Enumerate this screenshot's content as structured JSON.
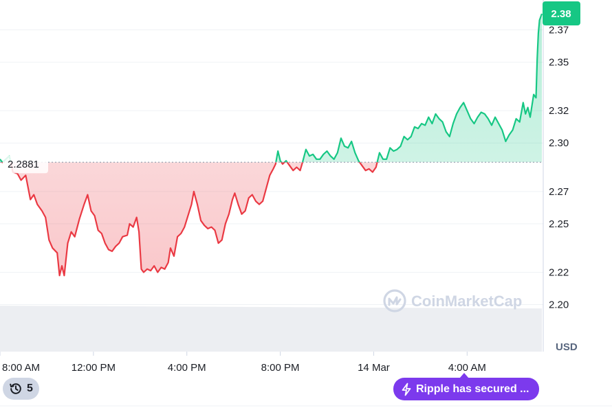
{
  "chart_data": {
    "type": "line",
    "y_ticks": [
      "2.20",
      "2.22",
      "2.25",
      "2.27",
      "2.30",
      "2.32",
      "2.35",
      "2.37"
    ],
    "y_tick_values": [
      2.2,
      2.22,
      2.25,
      2.27,
      2.3,
      2.32,
      2.35,
      2.37
    ],
    "ylim": [
      2.193,
      2.38
    ],
    "x_ticks": [
      "8:00 AM",
      "12:00 PM",
      "4:00 PM",
      "8:00 PM",
      "14 Mar",
      "4:00 AM"
    ],
    "x_tick_hours": [
      8,
      12,
      16,
      20,
      24,
      28
    ],
    "xlim_hours": [
      8,
      31.2
    ],
    "unit": "USD",
    "reference_price": 2.2881,
    "reference_label": "2.2881",
    "current_price": 2.38,
    "current_price_label": "2.38",
    "watermark": "CoinMarketCap",
    "series": [
      {
        "points": [
          [
            8.0,
            2.29
          ],
          [
            8.1,
            2.288
          ],
          [
            8.4,
            2.292
          ],
          [
            8.55,
            2.282
          ],
          [
            8.75,
            2.281
          ],
          [
            8.9,
            2.277
          ],
          [
            9.1,
            2.28
          ],
          [
            9.3,
            2.265
          ],
          [
            9.45,
            2.268
          ],
          [
            9.6,
            2.262
          ],
          [
            9.8,
            2.258
          ],
          [
            9.95,
            2.254
          ],
          [
            10.1,
            2.24
          ],
          [
            10.25,
            2.235
          ],
          [
            10.45,
            2.232
          ],
          [
            10.55,
            2.218
          ],
          [
            10.65,
            2.224
          ],
          [
            10.75,
            2.218
          ],
          [
            10.9,
            2.238
          ],
          [
            11.05,
            2.245
          ],
          [
            11.2,
            2.242
          ],
          [
            11.4,
            2.253
          ],
          [
            11.6,
            2.262
          ],
          [
            11.75,
            2.268
          ],
          [
            11.9,
            2.258
          ],
          [
            12.05,
            2.255
          ],
          [
            12.2,
            2.246
          ],
          [
            12.35,
            2.244
          ],
          [
            12.5,
            2.238
          ],
          [
            12.65,
            2.234
          ],
          [
            12.8,
            2.233
          ],
          [
            12.95,
            2.236
          ],
          [
            13.1,
            2.238
          ],
          [
            13.25,
            2.242
          ],
          [
            13.45,
            2.243
          ],
          [
            13.55,
            2.25
          ],
          [
            13.7,
            2.248
          ],
          [
            13.85,
            2.254
          ],
          [
            13.95,
            2.245
          ],
          [
            14.05,
            2.222
          ],
          [
            14.15,
            2.22
          ],
          [
            14.3,
            2.222
          ],
          [
            14.45,
            2.221
          ],
          [
            14.6,
            2.224
          ],
          [
            14.75,
            2.22
          ],
          [
            14.9,
            2.223
          ],
          [
            15.05,
            2.222
          ],
          [
            15.2,
            2.226
          ],
          [
            15.3,
            2.235
          ],
          [
            15.45,
            2.23
          ],
          [
            15.6,
            2.242
          ],
          [
            15.75,
            2.244
          ],
          [
            15.9,
            2.248
          ],
          [
            16.05,
            2.255
          ],
          [
            16.2,
            2.262
          ],
          [
            16.3,
            2.27
          ],
          [
            16.45,
            2.262
          ],
          [
            16.6,
            2.252
          ],
          [
            16.75,
            2.249
          ],
          [
            16.9,
            2.247
          ],
          [
            17.05,
            2.248
          ],
          [
            17.2,
            2.246
          ],
          [
            17.35,
            2.238
          ],
          [
            17.5,
            2.24
          ],
          [
            17.65,
            2.25
          ],
          [
            17.8,
            2.256
          ],
          [
            17.95,
            2.265
          ],
          [
            18.05,
            2.269
          ],
          [
            18.2,
            2.262
          ],
          [
            18.35,
            2.256
          ],
          [
            18.5,
            2.258
          ],
          [
            18.65,
            2.266
          ],
          [
            18.8,
            2.268
          ],
          [
            18.95,
            2.264
          ],
          [
            19.1,
            2.262
          ],
          [
            19.25,
            2.264
          ],
          [
            19.4,
            2.272
          ],
          [
            19.55,
            2.28
          ],
          [
            19.7,
            2.284
          ],
          [
            19.8,
            2.287
          ],
          [
            19.9,
            2.295
          ],
          [
            20.0,
            2.289
          ],
          [
            20.1,
            2.287
          ],
          [
            20.25,
            2.289
          ],
          [
            20.4,
            2.286
          ],
          [
            20.55,
            2.283
          ],
          [
            20.7,
            2.285
          ],
          [
            20.85,
            2.283
          ],
          [
            20.95,
            2.288
          ],
          [
            21.1,
            2.296
          ],
          [
            21.25,
            2.292
          ],
          [
            21.4,
            2.293
          ],
          [
            21.55,
            2.29
          ],
          [
            21.7,
            2.29
          ],
          [
            21.85,
            2.293
          ],
          [
            22.0,
            2.295
          ],
          [
            22.15,
            2.292
          ],
          [
            22.3,
            2.29
          ],
          [
            22.45,
            2.294
          ],
          [
            22.6,
            2.303
          ],
          [
            22.75,
            2.298
          ],
          [
            22.9,
            2.297
          ],
          [
            23.05,
            2.301
          ],
          [
            23.2,
            2.294
          ],
          [
            23.35,
            2.289
          ],
          [
            23.5,
            2.286
          ],
          [
            23.65,
            2.283
          ],
          [
            23.8,
            2.284
          ],
          [
            23.95,
            2.282
          ],
          [
            24.1,
            2.285
          ],
          [
            24.25,
            2.294
          ],
          [
            24.4,
            2.29
          ],
          [
            24.55,
            2.29
          ],
          [
            24.7,
            2.297
          ],
          [
            24.85,
            2.295
          ],
          [
            25.0,
            2.296
          ],
          [
            25.15,
            2.298
          ],
          [
            25.3,
            2.304
          ],
          [
            25.45,
            2.302
          ],
          [
            25.6,
            2.304
          ],
          [
            25.75,
            2.31
          ],
          [
            25.9,
            2.309
          ],
          [
            26.05,
            2.312
          ],
          [
            26.2,
            2.311
          ],
          [
            26.35,
            2.316
          ],
          [
            26.5,
            2.312
          ],
          [
            26.65,
            2.318
          ],
          [
            26.8,
            2.315
          ],
          [
            26.95,
            2.313
          ],
          [
            27.1,
            2.307
          ],
          [
            27.25,
            2.304
          ],
          [
            27.4,
            2.312
          ],
          [
            27.55,
            2.318
          ],
          [
            27.7,
            2.322
          ],
          [
            27.85,
            2.325
          ],
          [
            28.0,
            2.32
          ],
          [
            28.15,
            2.315
          ],
          [
            28.3,
            2.312
          ],
          [
            28.45,
            2.316
          ],
          [
            28.6,
            2.319
          ],
          [
            28.75,
            2.318
          ],
          [
            28.9,
            2.315
          ],
          [
            29.05,
            2.311
          ],
          [
            29.2,
            2.316
          ],
          [
            29.35,
            2.312
          ],
          [
            29.5,
            2.308
          ],
          [
            29.65,
            2.301
          ],
          [
            29.8,
            2.305
          ],
          [
            29.95,
            2.308
          ],
          [
            30.1,
            2.315
          ],
          [
            30.25,
            2.313
          ],
          [
            30.4,
            2.325
          ],
          [
            30.5,
            2.318
          ],
          [
            30.6,
            2.322
          ],
          [
            30.7,
            2.316
          ],
          [
            30.85,
            2.33
          ],
          [
            30.95,
            2.328
          ],
          [
            31.0,
            2.352
          ],
          [
            31.05,
            2.368
          ],
          [
            31.1,
            2.376
          ],
          [
            31.2,
            2.38
          ]
        ]
      }
    ],
    "volume_level": 0.88
  },
  "ui": {
    "history_count": "5",
    "news_text": "Ripple has secured ...",
    "history_icon": "history-clock-icon",
    "news_icon": "lightning-bolt-icon",
    "colors": {
      "up": "#16c784",
      "down": "#ea3943",
      "price_tag": "#16c784",
      "news_pill": "#7c3aed",
      "history_pill": "#cfd6e4",
      "grid": "#eff2f5",
      "volume": "#eceef2"
    }
  }
}
